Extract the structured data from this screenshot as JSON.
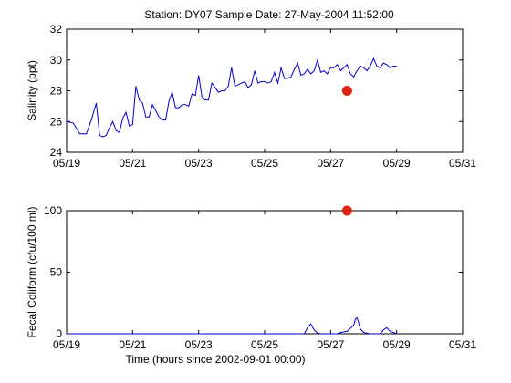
{
  "title": "Station: DY07  Sample Date: 27-May-2004 11:52:00",
  "chart_data": [
    {
      "type": "line",
      "ylabel": "Salinity (ppt)",
      "xlabel": "",
      "x_tick_labels": [
        "05/19",
        "05/21",
        "05/23",
        "05/25",
        "05/27",
        "05/29",
        "05/31"
      ],
      "y_ticks": [
        24,
        26,
        28,
        30,
        32
      ],
      "xlim_days": [
        0,
        12
      ],
      "ylim": [
        24,
        32
      ],
      "grid": false,
      "series": [
        {
          "style": "line",
          "color": "#0000cc",
          "x": [
            0.0,
            0.2,
            0.4,
            0.6,
            0.75,
            0.9,
            1.0,
            1.1,
            1.2,
            1.3,
            1.4,
            1.5,
            1.6,
            1.7,
            1.8,
            1.9,
            2.0,
            2.1,
            2.2,
            2.3,
            2.4,
            2.5,
            2.6,
            2.7,
            2.8,
            2.9,
            3.0,
            3.1,
            3.2,
            3.3,
            3.4,
            3.5,
            3.6,
            3.7,
            3.8,
            3.9,
            4.0,
            4.1,
            4.2,
            4.3,
            4.4,
            4.5,
            4.6,
            4.7,
            4.8,
            4.9,
            5.0,
            5.1,
            5.2,
            5.3,
            5.4,
            5.5,
            5.6,
            5.7,
            5.8,
            5.9,
            6.0,
            6.1,
            6.2,
            6.3,
            6.4,
            6.5,
            6.6,
            6.7,
            6.8,
            6.9,
            7.0,
            7.1,
            7.2,
            7.3,
            7.4,
            7.5,
            7.6,
            7.7,
            7.8,
            7.9,
            8.0,
            8.1,
            8.2,
            8.3,
            8.4,
            8.5,
            8.6,
            8.7,
            8.8,
            8.9,
            9.0,
            9.1,
            9.2,
            9.3,
            9.4,
            9.5,
            9.6,
            9.7,
            9.8,
            9.9,
            10.0
          ],
          "y": [
            26.0,
            25.9,
            25.2,
            25.2,
            26.1,
            27.2,
            25.1,
            25.0,
            25.1,
            25.6,
            26.0,
            25.4,
            25.3,
            26.2,
            26.6,
            25.7,
            25.8,
            28.3,
            27.4,
            27.2,
            26.3,
            26.3,
            27.1,
            26.7,
            26.3,
            26.1,
            26.1,
            27.3,
            27.9,
            26.9,
            26.9,
            27.1,
            27.1,
            27.0,
            27.8,
            27.7,
            29.0,
            27.6,
            27.4,
            27.4,
            28.5,
            28.2,
            27.9,
            28.0,
            28.0,
            28.3,
            29.5,
            28.3,
            28.4,
            28.5,
            28.6,
            28.2,
            28.4,
            29.3,
            28.5,
            28.6,
            28.6,
            28.5,
            28.6,
            29.2,
            28.5,
            29.5,
            28.8,
            28.8,
            28.9,
            29.4,
            29.8,
            29.0,
            29.1,
            29.4,
            29.1,
            29.3,
            30.0,
            29.2,
            29.3,
            29.1,
            29.5,
            29.5,
            29.7,
            29.3,
            29.5,
            29.7,
            29.1,
            28.9,
            29.3,
            29.6,
            29.5,
            29.3,
            29.6,
            30.1,
            29.6,
            29.5,
            29.8,
            29.7,
            29.5,
            29.6,
            29.6
          ]
        },
        {
          "style": "marker",
          "color": "#dd2211",
          "x": [
            8.5
          ],
          "y": [
            28.0
          ]
        }
      ]
    },
    {
      "type": "line",
      "ylabel": "Fecal Coliform (cfu/100 ml)",
      "xlabel": "Time (hours since 2002-09-01 00:00)",
      "x_tick_labels": [
        "05/19",
        "05/21",
        "05/23",
        "05/25",
        "05/27",
        "05/29",
        "05/31"
      ],
      "y_ticks": [
        0,
        50,
        100
      ],
      "xlim_days": [
        0,
        12
      ],
      "ylim": [
        0,
        100
      ],
      "grid": false,
      "series": [
        {
          "style": "line",
          "color": "#0000cc",
          "x": [
            0.0,
            7.0,
            7.2,
            7.3,
            7.4,
            7.5,
            7.6,
            7.7,
            8.0,
            8.2,
            8.3,
            8.5,
            8.7,
            8.75,
            8.8,
            8.85,
            8.9,
            9.0,
            9.2,
            9.5,
            9.6,
            9.7,
            9.8,
            9.9,
            10.0
          ],
          "y": [
            0,
            0,
            0,
            5,
            8,
            3,
            0.5,
            0,
            0,
            0,
            1,
            2,
            7,
            12,
            13,
            9,
            4,
            1,
            0,
            0,
            3,
            5,
            2,
            1,
            0
          ]
        },
        {
          "style": "marker",
          "color": "#dd2211",
          "x": [
            8.5
          ],
          "y": [
            100
          ]
        }
      ]
    }
  ]
}
